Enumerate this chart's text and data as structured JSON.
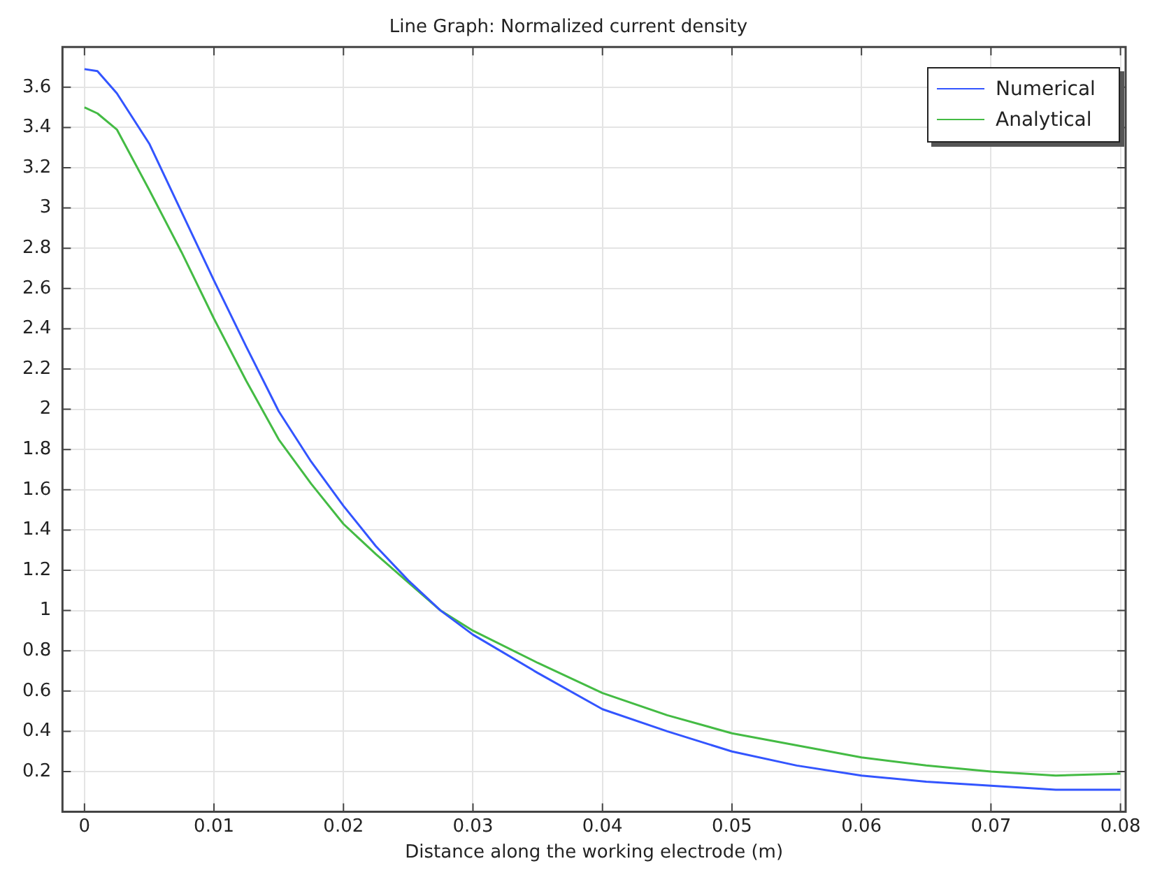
{
  "chart_data": {
    "type": "line",
    "title": "Line Graph: Normalized current density",
    "xlabel": "Distance along the working electrode (m)",
    "x": [
      0,
      0.001,
      0.0025,
      0.005,
      0.0075,
      0.01,
      0.0125,
      0.015,
      0.0175,
      0.02,
      0.0225,
      0.025,
      0.0275,
      0.03,
      0.035,
      0.04,
      0.045,
      0.05,
      0.055,
      0.06,
      0.065,
      0.07,
      0.075,
      0.08
    ],
    "series": [
      {
        "name": "Numerical",
        "color": "#3355ff",
        "values": [
          3.69,
          3.68,
          3.57,
          3.32,
          2.98,
          2.64,
          2.31,
          1.99,
          1.74,
          1.52,
          1.32,
          1.15,
          1.0,
          0.88,
          0.69,
          0.51,
          0.4,
          0.3,
          0.23,
          0.18,
          0.15,
          0.13,
          0.11,
          0.11
        ]
      },
      {
        "name": "Analytical",
        "color": "#44bb44",
        "values": [
          3.5,
          3.47,
          3.39,
          3.09,
          2.78,
          2.45,
          2.14,
          1.85,
          1.63,
          1.43,
          1.28,
          1.14,
          1.0,
          0.9,
          0.74,
          0.59,
          0.48,
          0.39,
          0.33,
          0.27,
          0.23,
          0.2,
          0.18,
          0.19
        ]
      }
    ],
    "xlim": [
      -0.0017,
      0.0804
    ],
    "ylim": [
      0,
      3.8
    ],
    "xticks": [
      0,
      0.01,
      0.02,
      0.03,
      0.04,
      0.05,
      0.06,
      0.07,
      0.08
    ],
    "yticks": [
      0.2,
      0.4,
      0.6,
      0.8,
      1,
      1.2,
      1.4,
      1.6,
      1.8,
      2,
      2.2,
      2.4,
      2.6,
      2.8,
      3,
      3.2,
      3.4,
      3.6
    ],
    "grid": true,
    "legend": "top right",
    "marker": "none",
    "line_style": "solid"
  }
}
